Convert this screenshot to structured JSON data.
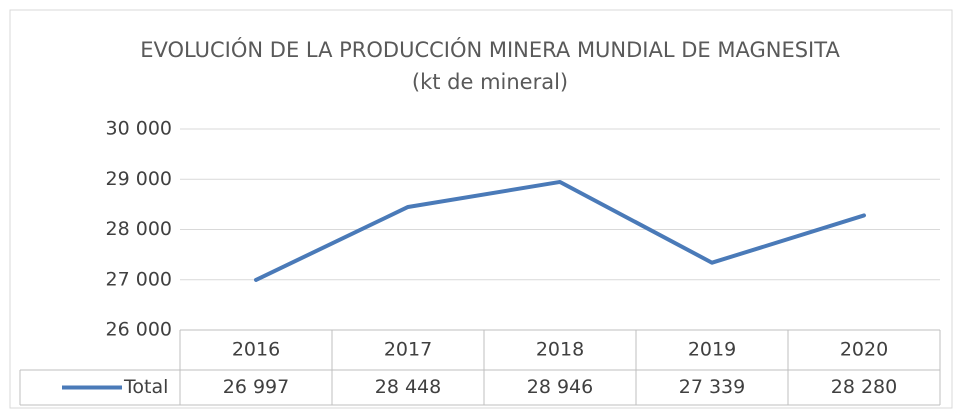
{
  "chart_data": {
    "type": "line",
    "title": "EVOLUCIÓN DE LA PRODUCCIÓN MINERA MUNDIAL DE MAGNESITA (kt de mineral)",
    "categories": [
      "2016",
      "2017",
      "2018",
      "2019",
      "2020"
    ],
    "series": [
      {
        "name": "Total",
        "color": "#4a7ab8",
        "values": [
          26997,
          28448,
          28946,
          27339,
          28280
        ],
        "value_labels": [
          "26 997",
          "28 448",
          "28 946",
          "27 339",
          "28 280"
        ]
      }
    ],
    "ylim": [
      26000,
      30000
    ],
    "yticks": [
      {
        "value": 26000,
        "label": "26 000"
      },
      {
        "value": 27000,
        "label": "27 000"
      },
      {
        "value": 28000,
        "label": "28 000"
      },
      {
        "value": 29000,
        "label": "29 000"
      },
      {
        "value": 30000,
        "label": "30 000"
      }
    ],
    "grid": true
  }
}
